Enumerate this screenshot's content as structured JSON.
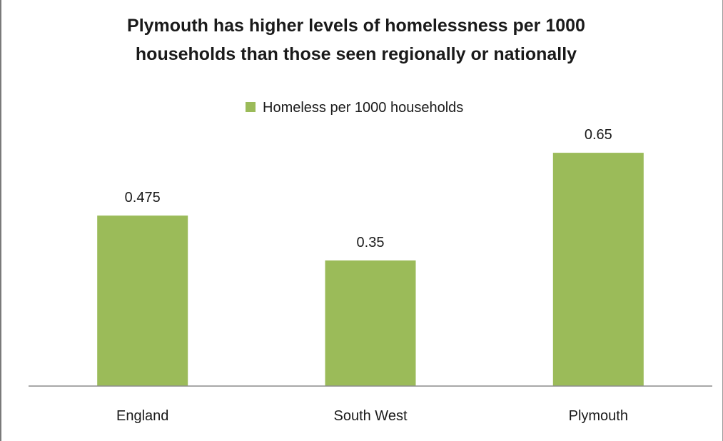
{
  "chart_data": {
    "type": "bar",
    "title": "Plymouth has higher levels of homelessness per 1000 households than those seen regionally or nationally",
    "title_lines": [
      "Plymouth has higher levels of homelessness per 1000",
      "households than those seen regionally or nationally"
    ],
    "categories": [
      "England",
      "South West",
      "Plymouth"
    ],
    "series": [
      {
        "name": "Homeless per 1000 households",
        "values": [
          0.475,
          0.35,
          0.65
        ],
        "color": "#9bbb59"
      }
    ],
    "data_labels": [
      "0.475",
      "0.35",
      "0.65"
    ],
    "xlabel": "",
    "ylabel": "",
    "ylim": [
      0,
      0.7
    ],
    "grid": false,
    "legend_position": "top"
  }
}
